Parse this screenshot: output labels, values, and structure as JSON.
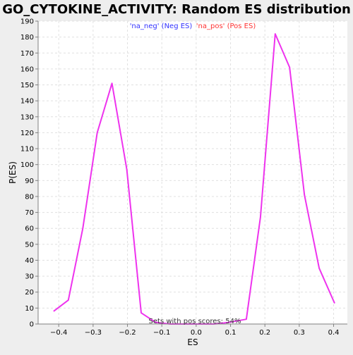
{
  "chart_data": {
    "type": "line",
    "title": "GO_CYTOKINE_ACTIVITY: Random ES distribution",
    "xlabel": "ES",
    "ylabel": "P(ES)",
    "xlim": [
      -0.46,
      0.44
    ],
    "ylim": [
      0,
      190
    ],
    "x_ticks": [
      -0.4,
      -0.3,
      -0.2,
      -0.1,
      0.0,
      0.1,
      0.2,
      0.3,
      0.4
    ],
    "x_tick_labels": [
      "−0.4",
      "−0.3",
      "−0.2",
      "−0.1",
      "0.0",
      "0.1",
      "0.2",
      "0.3",
      "0.4"
    ],
    "y_ticks": [
      0,
      10,
      20,
      30,
      40,
      50,
      60,
      70,
      80,
      90,
      100,
      110,
      120,
      130,
      140,
      150,
      160,
      170,
      180,
      190
    ],
    "grid": true,
    "legend": [
      {
        "label": "'na_neg' (Neg ES)",
        "color": "#3333ff"
      },
      {
        "label": "'na_pos' (Pos ES)",
        "color": "#ff3333"
      }
    ],
    "legend_position": "top-center",
    "annotation": "Sets with pos scores: 54%",
    "series": [
      {
        "color": "#ee33ee",
        "x": [
          -0.415,
          -0.372,
          -0.33,
          -0.288,
          -0.245,
          -0.202,
          -0.16,
          -0.118,
          -0.075,
          -0.033,
          0.01,
          0.052,
          0.095,
          0.146,
          0.187,
          0.23,
          0.272,
          0.315,
          0.358,
          0.403
        ],
        "y": [
          8,
          15,
          60,
          120,
          151,
          97,
          7,
          1,
          0,
          0,
          0,
          0,
          1,
          3,
          67,
          182,
          161,
          81,
          35,
          13
        ]
      }
    ]
  }
}
